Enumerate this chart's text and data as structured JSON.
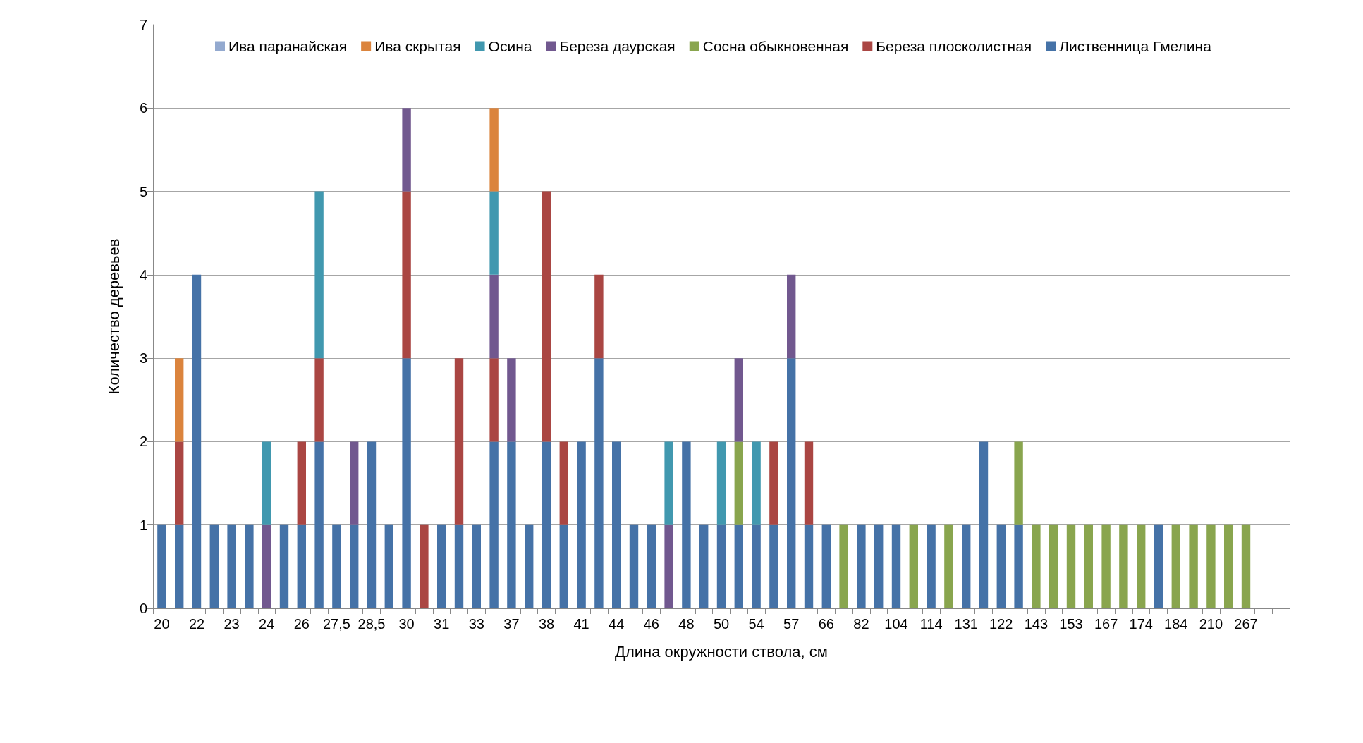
{
  "chart_data": {
    "type": "bar",
    "stacked": true,
    "xlabel": "Длина окружности ствола, см",
    "ylabel": "Количество деревьев",
    "categories": [
      "20",
      null,
      "22",
      null,
      "23",
      null,
      "24",
      null,
      "26",
      null,
      "27,5",
      null,
      "28,5",
      null,
      "30",
      null,
      "31",
      null,
      "33",
      null,
      "37",
      null,
      "38",
      null,
      "41",
      null,
      "44",
      null,
      "46",
      null,
      "48",
      null,
      "50",
      null,
      "54",
      null,
      "57",
      null,
      "66",
      null,
      "82",
      null,
      "104",
      null,
      "114",
      null,
      "131",
      null,
      "122",
      null,
      "143",
      null,
      "153",
      null,
      "167",
      null,
      "174",
      null,
      "184",
      null,
      "210",
      null,
      "267",
      null,
      null
    ],
    "series": [
      {
        "name": "Лиственница Гмелина",
        "color": "#4572a7",
        "values": [
          1,
          1,
          4,
          1,
          1,
          1,
          0,
          1,
          1,
          2,
          1,
          1,
          2,
          1,
          3,
          0,
          1,
          1,
          1,
          2,
          2,
          1,
          2,
          1,
          2,
          3,
          2,
          1,
          1,
          0,
          2,
          1,
          1,
          1,
          1,
          1,
          3,
          1,
          1,
          0,
          1,
          1,
          1,
          0,
          1,
          0,
          1,
          2,
          1,
          1,
          0,
          0,
          0,
          0,
          0,
          0,
          0,
          1,
          0,
          0,
          0,
          0,
          0,
          null,
          null
        ]
      },
      {
        "name": "Береза плосколистная",
        "color": "#aa4643",
        "values": [
          0,
          1,
          0,
          0,
          0,
          0,
          0,
          0,
          1,
          1,
          0,
          0,
          0,
          0,
          2,
          1,
          0,
          2,
          0,
          1,
          0,
          0,
          3,
          1,
          0,
          1,
          0,
          0,
          0,
          0,
          0,
          0,
          0,
          0,
          0,
          1,
          0,
          1,
          0,
          0,
          0,
          0,
          0,
          0,
          0,
          0,
          0,
          0,
          0,
          0,
          0,
          0,
          0,
          0,
          0,
          0,
          0,
          0,
          0,
          0,
          0,
          0,
          0,
          null,
          null
        ]
      },
      {
        "name": "Сосна обыкновенная",
        "color": "#89a54e",
        "values": [
          0,
          0,
          0,
          0,
          0,
          0,
          0,
          0,
          0,
          0,
          0,
          0,
          0,
          0,
          0,
          0,
          0,
          0,
          0,
          0,
          0,
          0,
          0,
          0,
          0,
          0,
          0,
          0,
          0,
          0,
          0,
          0,
          0,
          1,
          0,
          0,
          0,
          0,
          0,
          1,
          0,
          0,
          0,
          1,
          0,
          1,
          0,
          0,
          0,
          1,
          1,
          1,
          1,
          1,
          1,
          1,
          1,
          0,
          1,
          1,
          1,
          1,
          1,
          null,
          null
        ]
      },
      {
        "name": "Береза даурская",
        "color": "#71588f",
        "values": [
          0,
          0,
          0,
          0,
          0,
          0,
          1,
          0,
          0,
          0,
          0,
          1,
          0,
          0,
          1,
          0,
          0,
          0,
          0,
          1,
          1,
          0,
          0,
          0,
          0,
          0,
          0,
          0,
          0,
          1,
          0,
          0,
          0,
          1,
          0,
          0,
          1,
          0,
          0,
          0,
          0,
          0,
          0,
          0,
          0,
          0,
          0,
          0,
          0,
          0,
          0,
          0,
          0,
          0,
          0,
          0,
          0,
          0,
          0,
          0,
          0,
          0,
          0,
          null,
          null
        ]
      },
      {
        "name": "Осина",
        "color": "#4198af",
        "values": [
          0,
          0,
          0,
          0,
          0,
          0,
          1,
          0,
          0,
          2,
          0,
          0,
          0,
          0,
          0,
          0,
          0,
          0,
          0,
          1,
          0,
          0,
          0,
          0,
          0,
          0,
          0,
          0,
          0,
          1,
          0,
          0,
          1,
          0,
          1,
          0,
          0,
          0,
          0,
          0,
          0,
          0,
          0,
          0,
          0,
          0,
          0,
          0,
          0,
          0,
          0,
          0,
          0,
          0,
          0,
          0,
          0,
          0,
          0,
          0,
          0,
          0,
          0,
          null,
          null
        ]
      },
      {
        "name": "Ива скрытая",
        "color": "#db843d",
        "values": [
          0,
          1,
          0,
          0,
          0,
          0,
          0,
          0,
          0,
          0,
          0,
          0,
          0,
          0,
          0,
          0,
          0,
          0,
          0,
          1,
          0,
          0,
          0,
          0,
          0,
          0,
          0,
          0,
          0,
          0,
          0,
          0,
          0,
          0,
          0,
          0,
          0,
          0,
          0,
          0,
          0,
          0,
          0,
          0,
          0,
          0,
          0,
          0,
          0,
          0,
          0,
          0,
          0,
          0,
          0,
          0,
          0,
          0,
          0,
          0,
          0,
          0,
          0,
          null,
          null
        ]
      },
      {
        "name": "Ива паранайская",
        "color": "#93a9cf",
        "values": [
          0,
          0,
          0,
          0,
          0,
          0,
          0,
          0,
          0,
          0,
          0,
          0,
          0,
          0,
          0,
          0,
          0,
          0,
          0,
          0,
          0,
          0,
          0,
          0,
          0,
          0,
          0,
          0,
          0,
          0,
          0,
          0,
          0,
          0,
          0,
          0,
          0,
          0,
          0,
          0,
          0,
          0,
          0,
          0,
          0,
          0,
          0,
          0,
          0,
          0,
          0,
          0,
          0,
          0,
          0,
          0,
          0,
          0,
          0,
          0,
          0,
          0,
          0,
          null,
          null
        ]
      }
    ],
    "ylim": [
      0,
      7
    ],
    "yticks": [
      0,
      1,
      2,
      3,
      4,
      5,
      6,
      7
    ],
    "grid": "y",
    "legend": "top"
  }
}
